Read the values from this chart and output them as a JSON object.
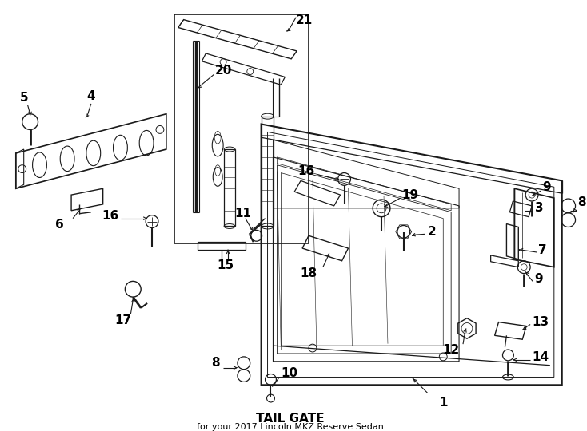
{
  "title": "TAIL GATE",
  "subtitle": "for your 2017 Lincoln MKZ Reserve Sedan",
  "bg_color": "#ffffff",
  "line_color": "#1a1a1a",
  "text_color": "#000000",
  "figsize": [
    7.34,
    5.4
  ],
  "dpi": 100
}
